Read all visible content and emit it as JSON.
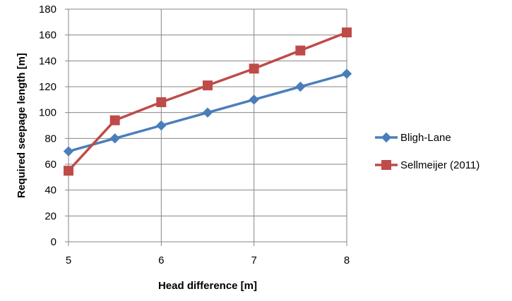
{
  "chart_data": {
    "type": "line",
    "x": [
      5,
      5.5,
      6,
      6.5,
      7,
      7.5,
      8
    ],
    "x_tick_labels": [
      "5",
      "6",
      "7",
      "8"
    ],
    "y_tick_labels": [
      "0",
      "20",
      "40",
      "60",
      "80",
      "100",
      "120",
      "140",
      "160",
      "180"
    ],
    "xlabel": "Head difference [m]",
    "ylabel": "Required seepage length [m]",
    "xlim": [
      5,
      8
    ],
    "ylim": [
      0,
      180
    ],
    "grid": "vertical and horizontal major gridlines",
    "legend_position": "right",
    "series": [
      {
        "name": "Bligh-Lane",
        "marker": "diamond",
        "color": "#4a7ebb",
        "values": [
          70,
          80,
          90,
          100,
          110,
          120,
          130
        ]
      },
      {
        "name": "Sellmeijer (2011)",
        "marker": "square",
        "color": "#be4b48",
        "values": [
          55,
          94,
          108,
          121,
          134,
          148,
          162
        ]
      }
    ]
  }
}
